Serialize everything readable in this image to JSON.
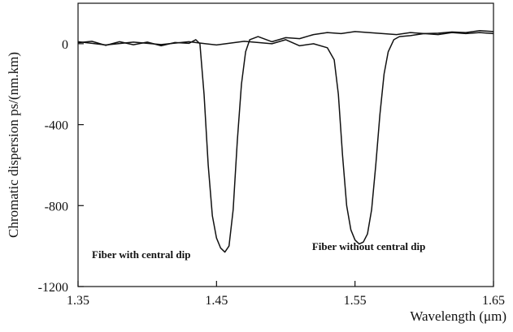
{
  "chart_data": {
    "type": "line",
    "title": "",
    "xlabel": "Wavelength (μm)",
    "ylabel": "Chromatic dispersion ps/(nm.km)",
    "xlim": [
      1.35,
      1.65
    ],
    "ylim": [
      -1200,
      200
    ],
    "xticks": [
      "1.35",
      "1.45",
      "1.55",
      "1.65"
    ],
    "yticks": [
      "0",
      "-400",
      "-800",
      "-1200"
    ],
    "grid": false,
    "legend": "none",
    "series": [
      {
        "x": [
          1.35,
          1.36,
          1.37,
          1.38,
          1.39,
          1.4,
          1.41,
          1.42,
          1.43,
          1.435,
          1.438,
          1.441,
          1.444,
          1.447,
          1.45,
          1.453,
          1.456,
          1.459,
          1.462,
          1.465,
          1.468,
          1.471,
          1.474,
          1.48,
          1.49,
          1.5,
          1.51,
          1.52,
          1.53,
          1.54,
          1.55,
          1.56,
          1.57,
          1.58,
          1.59,
          1.6,
          1.61,
          1.62,
          1.63,
          1.64,
          1.65
        ],
        "y": [
          5,
          12,
          -8,
          10,
          -5,
          8,
          -10,
          6,
          2,
          20,
          0,
          -250,
          -600,
          -850,
          -960,
          -1010,
          -1030,
          -1000,
          -820,
          -480,
          -200,
          -40,
          20,
          35,
          10,
          30,
          25,
          45,
          55,
          50,
          60,
          55,
          50,
          45,
          55,
          50,
          52,
          58,
          55,
          65,
          60
        ]
      },
      {
        "x": [
          1.35,
          1.37,
          1.39,
          1.41,
          1.43,
          1.45,
          1.47,
          1.49,
          1.5,
          1.51,
          1.52,
          1.53,
          1.535,
          1.538,
          1.541,
          1.544,
          1.547,
          1.55,
          1.553,
          1.556,
          1.559,
          1.562,
          1.565,
          1.568,
          1.571,
          1.574,
          1.578,
          1.582,
          1.59,
          1.6,
          1.61,
          1.62,
          1.63,
          1.64,
          1.65
        ],
        "y": [
          10,
          -6,
          8,
          -4,
          10,
          -6,
          12,
          0,
          20,
          -10,
          0,
          -20,
          -80,
          -250,
          -550,
          -800,
          -920,
          -970,
          -990,
          -980,
          -940,
          -820,
          -600,
          -350,
          -150,
          -40,
          20,
          35,
          40,
          50,
          45,
          55,
          50,
          55,
          50
        ]
      }
    ],
    "annotations": [
      "Fiber with central dip",
      "Fiber without central dip"
    ]
  }
}
